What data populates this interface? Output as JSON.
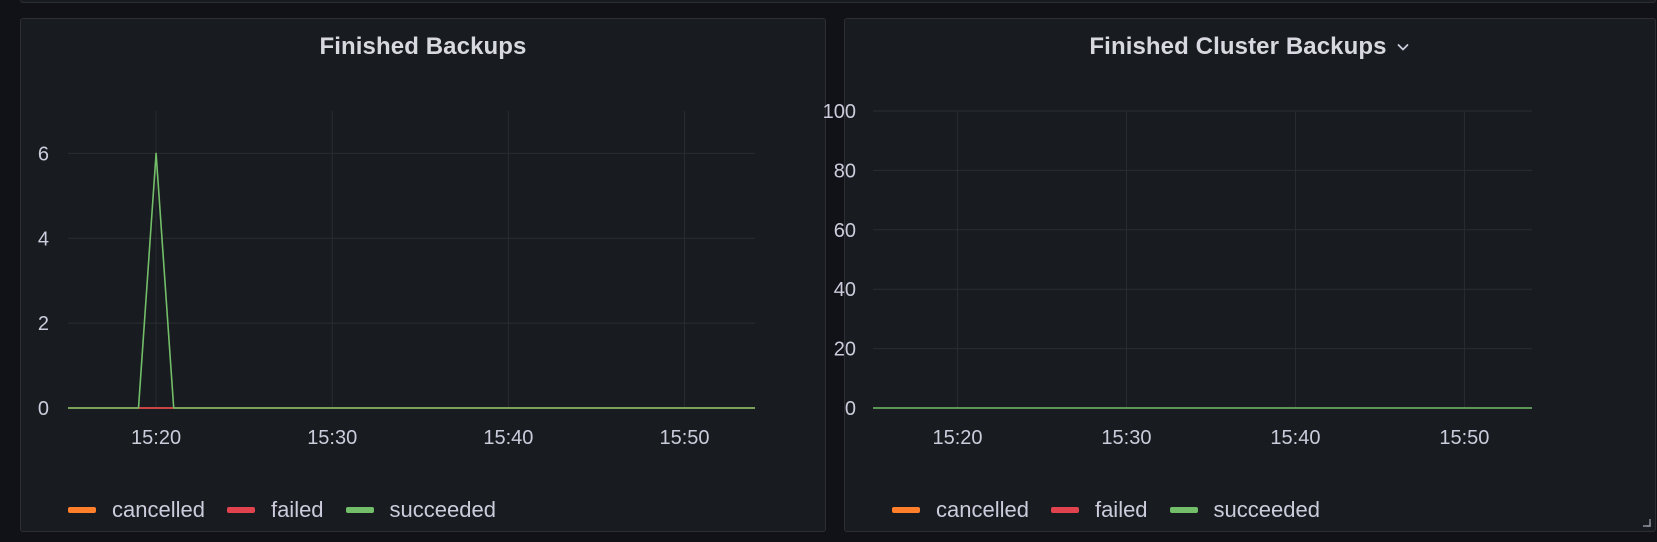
{
  "colors": {
    "cancelled": "#ff7f2a",
    "failed": "#e0434e",
    "succeeded": "#73bf69",
    "grid": "#2a2c31"
  },
  "icons": {
    "title_menu": "chevron-down-icon",
    "resize": "resize-handle-icon"
  },
  "panels": [
    {
      "title": "Finished Backups",
      "has_menu_chevron": false,
      "legend": [
        {
          "key": "cancelled",
          "label": "cancelled"
        },
        {
          "key": "failed",
          "label": "failed"
        },
        {
          "key": "succeeded",
          "label": "succeeded"
        }
      ]
    },
    {
      "title": "Finished Cluster Backups",
      "has_menu_chevron": true,
      "legend": [
        {
          "key": "cancelled",
          "label": "cancelled"
        },
        {
          "key": "failed",
          "label": "failed"
        },
        {
          "key": "succeeded",
          "label": "succeeded"
        }
      ]
    }
  ],
  "chart_data": [
    {
      "type": "line",
      "title": "Finished Backups",
      "xlabel": "",
      "ylabel": "",
      "x_range": [
        "15:15",
        "15:54"
      ],
      "x_ticks": [
        "15:20",
        "15:30",
        "15:40",
        "15:50"
      ],
      "y_ticks": [
        0,
        2,
        4,
        6
      ],
      "ylim": [
        0,
        7
      ],
      "grid": true,
      "legend_position": "bottom-left",
      "series": [
        {
          "name": "cancelled",
          "x": [
            "15:15",
            "15:54"
          ],
          "values": [
            0,
            0
          ]
        },
        {
          "name": "failed",
          "x": [
            "15:19",
            "15:21"
          ],
          "values": [
            0,
            0
          ]
        },
        {
          "name": "succeeded",
          "x": [
            "15:15",
            "15:19",
            "15:20",
            "15:21",
            "15:54"
          ],
          "values": [
            0,
            0,
            6,
            0,
            0
          ]
        }
      ]
    },
    {
      "type": "line",
      "title": "Finished Cluster Backups",
      "xlabel": "",
      "ylabel": "",
      "x_range": [
        "15:15",
        "15:54"
      ],
      "x_ticks": [
        "15:20",
        "15:30",
        "15:40",
        "15:50"
      ],
      "y_ticks": [
        0,
        20,
        40,
        60,
        80,
        100
      ],
      "ylim": [
        0,
        100
      ],
      "grid": true,
      "legend_position": "bottom-left",
      "series": [
        {
          "name": "succeeded",
          "x": [
            "15:15",
            "15:54"
          ],
          "values": [
            0,
            0
          ]
        }
      ]
    }
  ]
}
